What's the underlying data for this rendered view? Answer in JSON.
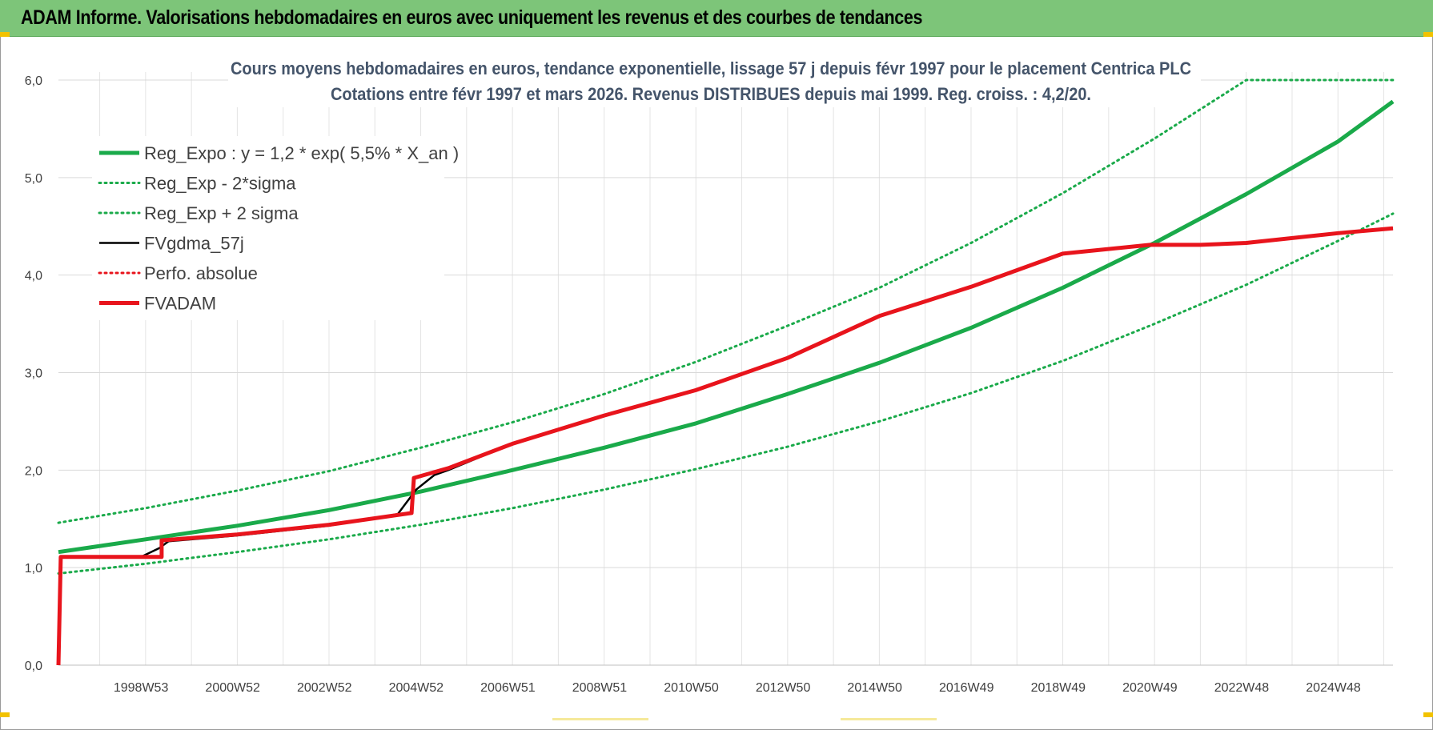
{
  "header": {
    "title": "ADAM Informe. Valorisations hebdomadaires en euros avec uniquement les revenus et des courbes de tendances"
  },
  "colors": {
    "banner": "#7dc579",
    "reg_expo": "#1aaa4a",
    "fvgdma": "#000000",
    "fvadam": "#e8141c",
    "perfo": "#e8141c",
    "grid": "#d9d9d9"
  },
  "chart_data": {
    "type": "line",
    "title_lines": [
      "Cours moyens hebdomadaires en euros, tendance exponentielle, lissage 57 j depuis févr 1997 pour le placement Centrica PLC",
      "Cotations entre févr 1997 et mars 2026. Revenus DISTRIBUES depuis mai 1999. Reg. croiss. : 4,2/20."
    ],
    "xlabel": "",
    "ylabel": "",
    "x_range": [
      1997.1,
      2026.2
    ],
    "ylim": [
      0,
      6
    ],
    "y_ticks": [
      "0,0",
      "1,0",
      "2,0",
      "3,0",
      "4,0",
      "5,0",
      "6,0"
    ],
    "x_ticks": [
      {
        "label": "1998W53",
        "x": 1999.0
      },
      {
        "label": "2000W52",
        "x": 2001.0
      },
      {
        "label": "2002W52",
        "x": 2003.0
      },
      {
        "label": "2004W52",
        "x": 2005.0
      },
      {
        "label": "2006W51",
        "x": 2007.0
      },
      {
        "label": "2008W51",
        "x": 2009.0
      },
      {
        "label": "2010W50",
        "x": 2011.0
      },
      {
        "label": "2012W50",
        "x": 2013.0
      },
      {
        "label": "2014W50",
        "x": 2015.0
      },
      {
        "label": "2016W49",
        "x": 2017.0
      },
      {
        "label": "2018W49",
        "x": 2019.0
      },
      {
        "label": "2020W49",
        "x": 2021.0
      },
      {
        "label": "2022W48",
        "x": 2023.0
      },
      {
        "label": "2024W48",
        "x": 2025.0
      }
    ],
    "grid": true,
    "legend": {
      "placement": "top-left"
    },
    "series": [
      {
        "name": "Reg_Expo : y = 1,2 * exp( 5,5% *  X_an )",
        "style": "solid-thick",
        "color": "#1aaa4a",
        "x": [
          1997.1,
          1999,
          2001,
          2003,
          2005,
          2007,
          2009,
          2011,
          2013,
          2015,
          2017,
          2019,
          2021,
          2023,
          2025,
          2026.2
        ],
        "y": [
          1.16,
          1.29,
          1.43,
          1.59,
          1.78,
          2.0,
          2.23,
          2.48,
          2.78,
          3.1,
          3.46,
          3.87,
          4.33,
          4.83,
          5.37,
          5.78
        ]
      },
      {
        "name": "Reg_Exp - 2*sigma",
        "style": "dotted",
        "color": "#1aaa4a",
        "x": [
          1997.1,
          1999,
          2001,
          2003,
          2005,
          2007,
          2009,
          2011,
          2013,
          2015,
          2017,
          2019,
          2021,
          2023,
          2025,
          2026.2
        ],
        "y": [
          0.94,
          1.04,
          1.16,
          1.29,
          1.44,
          1.61,
          1.8,
          2.01,
          2.24,
          2.5,
          2.79,
          3.12,
          3.5,
          3.9,
          4.35,
          4.63
        ]
      },
      {
        "name": "Reg_Exp + 2 sigma",
        "style": "dotted",
        "color": "#1aaa4a",
        "x": [
          1997.1,
          1999,
          2001,
          2003,
          2005,
          2007,
          2009,
          2011,
          2013,
          2015,
          2017,
          2019,
          2021,
          2023,
          2024,
          2026.2
        ],
        "y": [
          1.46,
          1.61,
          1.79,
          1.99,
          2.23,
          2.49,
          2.78,
          3.11,
          3.48,
          3.87,
          4.33,
          4.84,
          5.4,
          6.0,
          6.0,
          6.0
        ]
      },
      {
        "name": "FVgdma_57j",
        "style": "solid",
        "color": "#000000",
        "x": [
          1997.1,
          1997.15,
          1998.9,
          1999.3,
          1999.5,
          2001,
          2003,
          2004.5,
          2004.9,
          2005.3,
          2005.6,
          2007,
          2009,
          2011,
          2013,
          2015,
          2017,
          2019,
          2020.9,
          2022,
          2023,
          2025,
          2026.2
        ],
        "y": [
          0.0,
          1.11,
          1.11,
          1.2,
          1.27,
          1.33,
          1.43,
          1.55,
          1.8,
          1.95,
          2.0,
          2.27,
          2.56,
          2.82,
          3.15,
          3.58,
          3.88,
          4.22,
          4.31,
          4.31,
          4.33,
          4.43,
          4.48
        ]
      },
      {
        "name": "Perfo. absolue",
        "style": "dotted",
        "color": "#e8141c",
        "x": [],
        "y": []
      },
      {
        "name": "FVADAM",
        "style": "solid-thick",
        "color": "#e8141c",
        "x": [
          1997.1,
          1997.15,
          1999.35,
          1999.35,
          2001,
          2003,
          2004.8,
          2004.85,
          2005.6,
          2007,
          2009,
          2011,
          2013,
          2015,
          2017,
          2019,
          2020.9,
          2022,
          2023,
          2025,
          2026.2
        ],
        "y": [
          0.0,
          1.11,
          1.11,
          1.28,
          1.34,
          1.44,
          1.56,
          1.92,
          2.02,
          2.27,
          2.56,
          2.82,
          3.15,
          3.58,
          3.88,
          4.22,
          4.31,
          4.31,
          4.33,
          4.43,
          4.48
        ]
      }
    ]
  }
}
